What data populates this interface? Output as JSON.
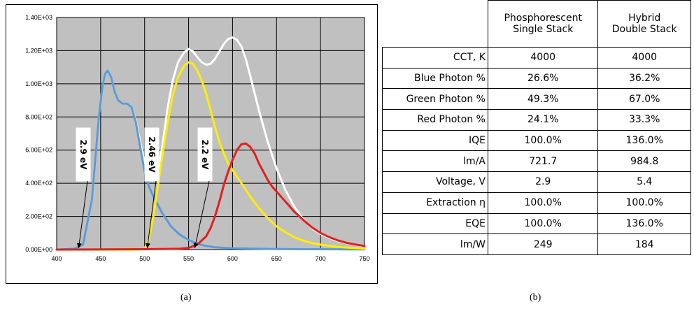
{
  "chart_data": {
    "type": "line",
    "x_range": [
      400,
      750
    ],
    "y_range": [
      0,
      1400
    ],
    "x_ticks": [
      "400",
      "450",
      "500",
      "550",
      "600",
      "650",
      "700",
      "750"
    ],
    "y_ticks": [
      "0.00E+00",
      "2.00E+02",
      "4.00E+02",
      "6.00E+02",
      "8.00E+02",
      "1.00E+03",
      "1.20E+03",
      "1.40E+03"
    ],
    "grid": true,
    "plot_background": "#c0c0c0",
    "series": [
      {
        "color": "#ffffff",
        "points": [
          [
            400,
            0
          ],
          [
            420,
            5
          ],
          [
            430,
            30
          ],
          [
            440,
            300
          ],
          [
            448,
            800
          ],
          [
            452,
            980
          ],
          [
            455,
            1060
          ],
          [
            458,
            1080
          ],
          [
            462,
            1040
          ],
          [
            466,
            950
          ],
          [
            470,
            900
          ],
          [
            475,
            880
          ],
          [
            480,
            880
          ],
          [
            485,
            860
          ],
          [
            490,
            780
          ],
          [
            495,
            650
          ],
          [
            500,
            520
          ],
          [
            504,
            460
          ],
          [
            508,
            440
          ],
          [
            512,
            450
          ],
          [
            516,
            500
          ],
          [
            520,
            620
          ],
          [
            526,
            850
          ],
          [
            532,
            1020
          ],
          [
            538,
            1130
          ],
          [
            545,
            1190
          ],
          [
            550,
            1210
          ],
          [
            555,
            1195
          ],
          [
            560,
            1160
          ],
          [
            565,
            1130
          ],
          [
            570,
            1115
          ],
          [
            575,
            1120
          ],
          [
            580,
            1150
          ],
          [
            585,
            1195
          ],
          [
            590,
            1240
          ],
          [
            595,
            1270
          ],
          [
            600,
            1280
          ],
          [
            605,
            1265
          ],
          [
            610,
            1225
          ],
          [
            615,
            1150
          ],
          [
            620,
            1050
          ],
          [
            630,
            840
          ],
          [
            640,
            650
          ],
          [
            650,
            490
          ],
          [
            660,
            360
          ],
          [
            670,
            260
          ],
          [
            680,
            185
          ],
          [
            690,
            130
          ],
          [
            700,
            95
          ],
          [
            710,
            70
          ],
          [
            720,
            50
          ],
          [
            730,
            38
          ],
          [
            740,
            28
          ],
          [
            750,
            20
          ]
        ]
      },
      {
        "color": "#5b9bd5",
        "points": [
          [
            400,
            0
          ],
          [
            420,
            5
          ],
          [
            430,
            30
          ],
          [
            440,
            300
          ],
          [
            448,
            800
          ],
          [
            452,
            980
          ],
          [
            455,
            1060
          ],
          [
            458,
            1080
          ],
          [
            462,
            1040
          ],
          [
            466,
            950
          ],
          [
            470,
            900
          ],
          [
            475,
            880
          ],
          [
            480,
            880
          ],
          [
            485,
            860
          ],
          [
            490,
            770
          ],
          [
            495,
            620
          ],
          [
            500,
            470
          ],
          [
            505,
            380
          ],
          [
            510,
            320
          ],
          [
            520,
            220
          ],
          [
            530,
            140
          ],
          [
            540,
            90
          ],
          [
            550,
            58
          ],
          [
            560,
            35
          ],
          [
            570,
            22
          ],
          [
            580,
            14
          ],
          [
            600,
            8
          ],
          [
            650,
            3
          ],
          [
            750,
            1
          ]
        ]
      },
      {
        "color": "#ffee00",
        "points": [
          [
            400,
            0
          ],
          [
            490,
            0
          ],
          [
            500,
            3
          ],
          [
            505,
            70
          ],
          [
            510,
            200
          ],
          [
            515,
            380
          ],
          [
            520,
            560
          ],
          [
            526,
            760
          ],
          [
            532,
            930
          ],
          [
            538,
            1040
          ],
          [
            545,
            1110
          ],
          [
            550,
            1130
          ],
          [
            555,
            1120
          ],
          [
            560,
            1080
          ],
          [
            565,
            1020
          ],
          [
            570,
            940
          ],
          [
            575,
            840
          ],
          [
            580,
            740
          ],
          [
            585,
            650
          ],
          [
            590,
            580
          ],
          [
            595,
            520
          ],
          [
            600,
            480
          ],
          [
            610,
            400
          ],
          [
            620,
            320
          ],
          [
            630,
            250
          ],
          [
            640,
            190
          ],
          [
            650,
            140
          ],
          [
            660,
            105
          ],
          [
            670,
            75
          ],
          [
            680,
            55
          ],
          [
            690,
            40
          ],
          [
            700,
            30
          ],
          [
            720,
            15
          ],
          [
            750,
            6
          ]
        ]
      },
      {
        "color": "#e02020",
        "points": [
          [
            400,
            0
          ],
          [
            500,
            2
          ],
          [
            540,
            5
          ],
          [
            550,
            10
          ],
          [
            560,
            30
          ],
          [
            570,
            80
          ],
          [
            575,
            130
          ],
          [
            580,
            200
          ],
          [
            585,
            290
          ],
          [
            590,
            390
          ],
          [
            595,
            470
          ],
          [
            600,
            540
          ],
          [
            605,
            600
          ],
          [
            610,
            635
          ],
          [
            615,
            640
          ],
          [
            620,
            620
          ],
          [
            625,
            580
          ],
          [
            630,
            520
          ],
          [
            635,
            470
          ],
          [
            640,
            420
          ],
          [
            645,
            380
          ],
          [
            650,
            350
          ],
          [
            660,
            290
          ],
          [
            670,
            230
          ],
          [
            680,
            180
          ],
          [
            690,
            135
          ],
          [
            700,
            100
          ],
          [
            710,
            75
          ],
          [
            720,
            55
          ],
          [
            730,
            40
          ],
          [
            740,
            30
          ],
          [
            750,
            22
          ]
        ]
      }
    ],
    "annotations": [
      {
        "text": "2.9 eV",
        "arrow_tip": [
          425,
          0
        ]
      },
      {
        "text": "2.46 eV",
        "arrow_tip": [
          503,
          0
        ]
      },
      {
        "text": "2.2 eV",
        "arrow_tip": [
          557,
          0
        ]
      }
    ],
    "caption": "(a)"
  },
  "table": {
    "headers": [
      {
        "line1": "Phosphorescent",
        "line2": "Single Stack"
      },
      {
        "line1": "Hybrid",
        "line2": "Double Stack"
      }
    ],
    "rows": [
      {
        "label": "CCT, K",
        "v1": "4000",
        "v2": "4000"
      },
      {
        "label": "Blue Photon %",
        "v1": "26.6%",
        "v2": "36.2%"
      },
      {
        "label": "Green Photon %",
        "v1": "49.3%",
        "v2": "67.0%"
      },
      {
        "label": "Red Photon %",
        "v1": "24.1%",
        "v2": "33.3%"
      },
      {
        "label": "IQE",
        "v1": "100.0%",
        "v2": "136.0%"
      },
      {
        "label": "lm/A",
        "v1": "721.7",
        "v2": "984.8"
      },
      {
        "label": "Voltage, V",
        "v1": "2.9",
        "v2": "5.4"
      },
      {
        "label": "Extraction η",
        "v1": "100.0%",
        "v2": "100.0%"
      },
      {
        "label": "EQE",
        "v1": "100.0%",
        "v2": "136.0%"
      },
      {
        "label": "lm/W",
        "v1": "249",
        "v2": "184"
      }
    ],
    "caption": "(b)"
  }
}
